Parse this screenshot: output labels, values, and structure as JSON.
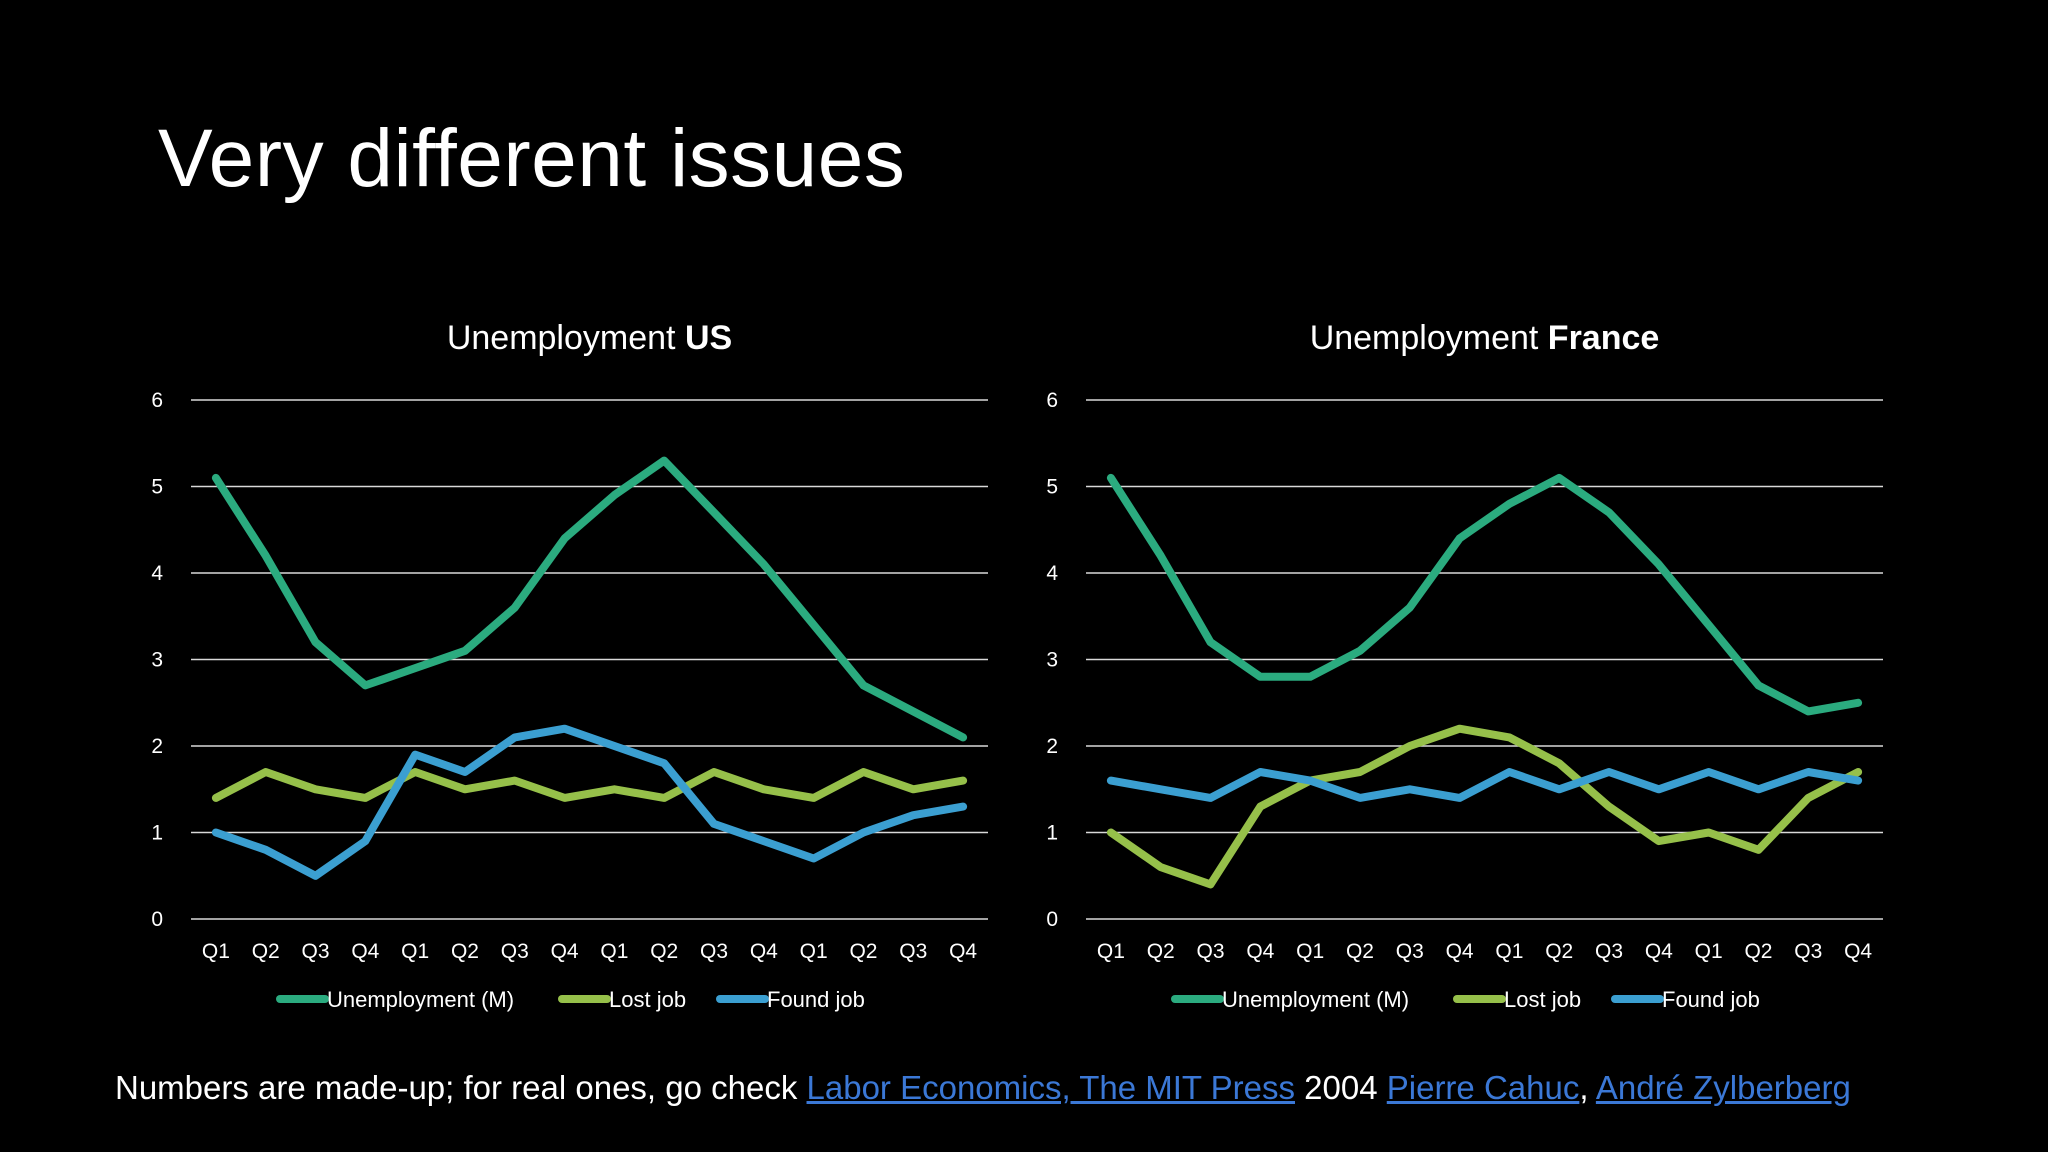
{
  "slide": {
    "title": "Very different issues"
  },
  "colors": {
    "background": "#000000",
    "unemployment": "#2bab7f",
    "lost_job": "#96c04a",
    "found_job": "#3b9fd1",
    "gridline": "#d9d9d9",
    "link": "#3b78d6"
  },
  "footnote": {
    "prefix": "Numbers are made-up; for real ones, go check ",
    "link1": "Labor Economics, The MIT Press",
    "middle": " 2004 ",
    "link2": "Pierre Cahuc",
    "sep": ", ",
    "link3": "André Zylberberg"
  },
  "chart_data": [
    {
      "type": "line",
      "title": "Unemployment ",
      "title_bold": "US",
      "categories": [
        "Q1",
        "Q2",
        "Q3",
        "Q4",
        "Q1",
        "Q2",
        "Q3",
        "Q4",
        "Q1",
        "Q2",
        "Q3",
        "Q4",
        "Q1",
        "Q2",
        "Q3",
        "Q4"
      ],
      "ylim": [
        0,
        6
      ],
      "yticks": [
        0,
        1,
        2,
        3,
        4,
        5,
        6
      ],
      "grid": true,
      "legend_position": "bottom",
      "series": [
        {
          "name": "Unemployment (M)",
          "color": "#2bab7f",
          "values": [
            5.1,
            4.2,
            3.2,
            2.7,
            2.9,
            3.1,
            3.6,
            4.4,
            4.9,
            5.3,
            4.7,
            4.1,
            3.4,
            2.7,
            2.4,
            2.1
          ]
        },
        {
          "name": "Lost job",
          "color": "#96c04a",
          "values": [
            1.4,
            1.7,
            1.5,
            1.4,
            1.7,
            1.5,
            1.6,
            1.4,
            1.5,
            1.4,
            1.7,
            1.5,
            1.4,
            1.7,
            1.5,
            1.6
          ]
        },
        {
          "name": "Found job",
          "color": "#3b9fd1",
          "values": [
            1.0,
            0.8,
            0.5,
            0.9,
            1.9,
            1.7,
            2.1,
            2.2,
            2.0,
            1.8,
            1.1,
            0.9,
            0.7,
            1.0,
            1.2,
            1.3
          ]
        }
      ]
    },
    {
      "type": "line",
      "title": "Unemployment ",
      "title_bold": "France",
      "categories": [
        "Q1",
        "Q2",
        "Q3",
        "Q4",
        "Q1",
        "Q2",
        "Q3",
        "Q4",
        "Q1",
        "Q2",
        "Q3",
        "Q4",
        "Q1",
        "Q2",
        "Q3",
        "Q4"
      ],
      "ylim": [
        0,
        6
      ],
      "yticks": [
        0,
        1,
        2,
        3,
        4,
        5,
        6
      ],
      "grid": true,
      "legend_position": "bottom",
      "series": [
        {
          "name": "Unemployment (M)",
          "color": "#2bab7f",
          "values": [
            5.1,
            4.2,
            3.2,
            2.8,
            2.8,
            3.1,
            3.6,
            4.4,
            4.8,
            5.1,
            4.7,
            4.1,
            3.4,
            2.7,
            2.4,
            2.5
          ]
        },
        {
          "name": "Lost job",
          "color": "#96c04a",
          "values": [
            1.0,
            0.6,
            0.4,
            1.3,
            1.6,
            1.7,
            2.0,
            2.2,
            2.1,
            1.8,
            1.3,
            0.9,
            1.0,
            0.8,
            1.4,
            1.7
          ]
        },
        {
          "name": "Found job",
          "color": "#3b9fd1",
          "values": [
            1.6,
            1.5,
            1.4,
            1.7,
            1.6,
            1.4,
            1.5,
            1.4,
            1.7,
            1.5,
            1.7,
            1.5,
            1.7,
            1.5,
            1.7,
            1.6
          ]
        }
      ]
    }
  ]
}
